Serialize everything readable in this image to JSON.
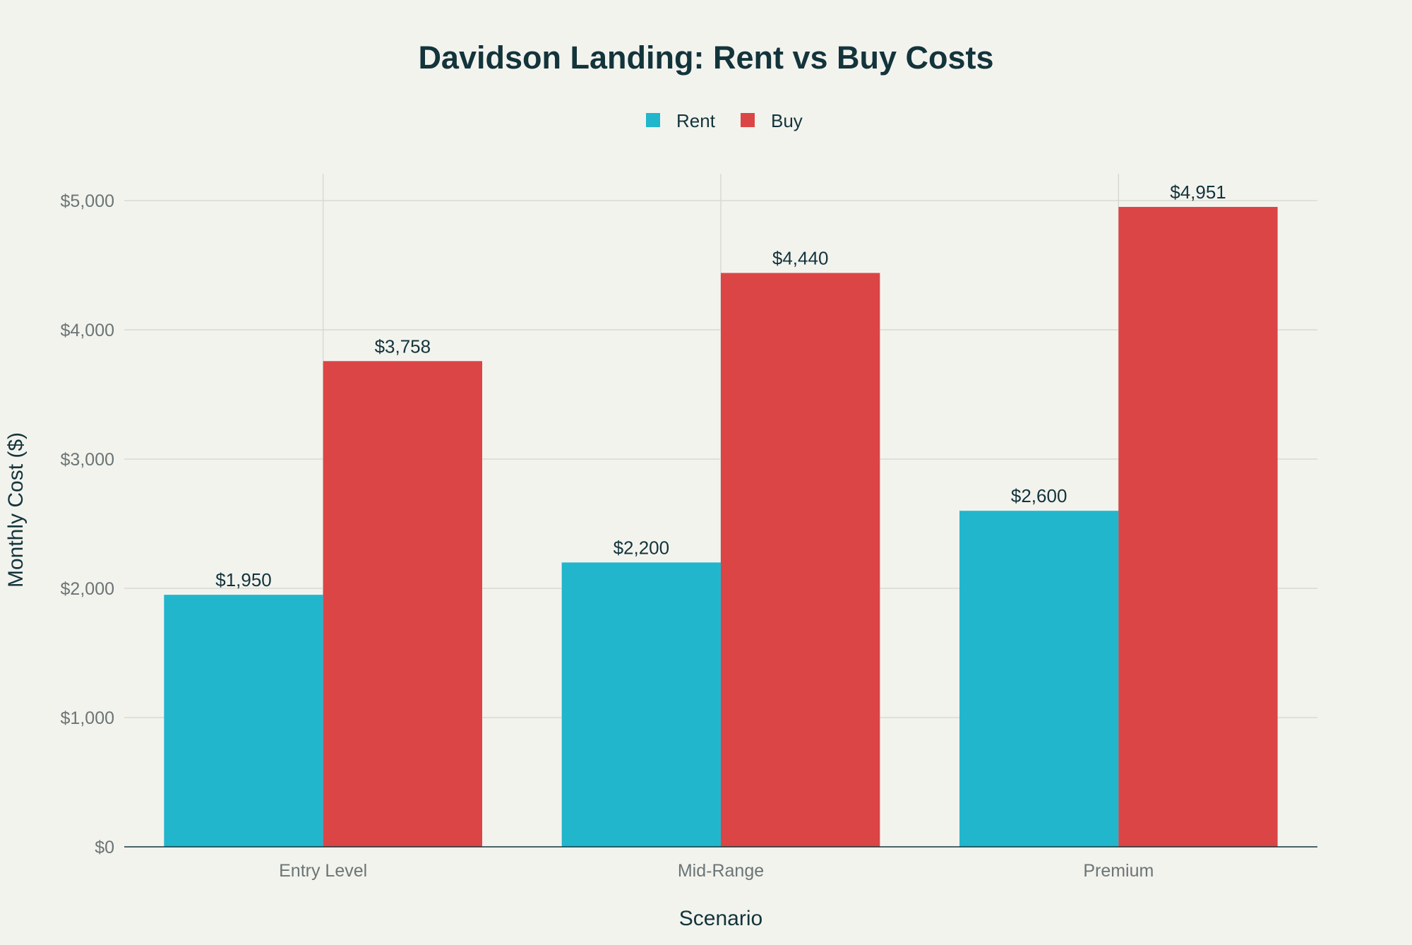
{
  "chart_data": {
    "type": "bar",
    "title": "Davidson Landing: Rent vs Buy Costs",
    "xlabel": "Scenario",
    "ylabel": "Monthly Cost ($)",
    "categories": [
      "Entry Level",
      "Mid-Range",
      "Premium"
    ],
    "series": [
      {
        "name": "Rent",
        "color": "#21b6cc",
        "values": [
          1950,
          2200,
          2600
        ],
        "labels": [
          "$1,950",
          "$2,200",
          "$2,600"
        ]
      },
      {
        "name": "Buy",
        "color": "#db4545",
        "values": [
          3758,
          4440,
          4951
        ],
        "labels": [
          "$3,758",
          "$4,440",
          "$4,951"
        ]
      }
    ],
    "ylim": [
      0,
      5200
    ],
    "yticks": [
      0,
      1000,
      2000,
      3000,
      4000,
      5000
    ],
    "ytick_labels": [
      "$0",
      "$1,000",
      "$2,000",
      "$3,000",
      "$4,000",
      "$5,000"
    ],
    "grid": true,
    "legend_position": "top-center"
  }
}
